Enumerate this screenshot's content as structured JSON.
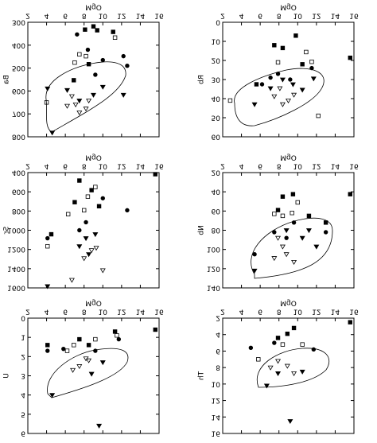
{
  "chart_data": [
    {
      "type": "scatter",
      "x_label": "MgO",
      "y_label": "Ba",
      "xlim": [
        2,
        16
      ],
      "xticks": [
        2,
        4,
        6,
        8,
        10,
        12,
        14,
        16
      ],
      "ylim": [
        300,
        800
      ],
      "yticks": [
        300,
        400,
        500,
        600,
        700,
        800
      ],
      "series": [
        {
          "marker": "circle",
          "color": "#000",
          "x": [
            7.25,
            9.2,
            10.0,
            12.2,
            12.6,
            8.4
          ],
          "y": [
            353,
            529,
            465,
            448,
            490,
            420
          ]
        },
        {
          "marker": "square",
          "color": "#000",
          "x": [
            8.1,
            9.4,
            9.0,
            11.1,
            6.9,
            8.5
          ],
          "y": [
            332,
            335,
            318,
            342,
            553,
            483
          ]
        },
        {
          "marker": "square",
          "color": "none",
          "x": [
            7.5,
            8.2,
            4.0,
            11.3,
            7.0
          ],
          "y": [
            440,
            448,
            650,
            367,
            476
          ]
        },
        {
          "marker": "triangle",
          "color": "#000",
          "x": [
            4.6,
            4.1,
            9.0,
            10.0,
            6.2,
            7.5,
            12.2
          ],
          "y": [
            782,
            589,
            617,
            582,
            596,
            642,
            617
          ]
        },
        {
          "marker": "triangle",
          "color": "none",
          "x": [
            6.7,
            7.1,
            7.5,
            8.2,
            6.2,
            8.5
          ],
          "y": [
            623,
            659,
            694,
            677,
            665,
            642
          ]
        }
      ]
    },
    {
      "type": "scatter",
      "x_label": "MgO",
      "y_label": "Rb",
      "xlim": [
        2,
        16
      ],
      "xticks": [
        2,
        4,
        6,
        8,
        10,
        12,
        14,
        16
      ],
      "ylim": [
        0,
        60
      ],
      "yticks": [
        0,
        10,
        20,
        30,
        40,
        50,
        60
      ],
      "series": [
        {
          "marker": "circle",
          "color": "#000",
          "x": [
            6.2,
            7.1,
            11.5,
            9.2,
            7.9
          ],
          "y": [
            32.5,
            29,
            24,
            30,
            27
          ]
        },
        {
          "marker": "square",
          "color": "#000",
          "x": [
            7.5,
            9.8,
            8.4,
            10.5,
            5.6,
            15.6
          ],
          "y": [
            12,
            7,
            13.5,
            22,
            32.5,
            18.6
          ]
        },
        {
          "marker": "square",
          "color": "none",
          "x": [
            11.5,
            7.9,
            12.2,
            2.8,
            10.9
          ],
          "y": [
            20.7,
            21,
            49,
            41,
            15.6
          ]
        },
        {
          "marker": "triangle",
          "color": "#000",
          "x": [
            5.4,
            8.4,
            9.5,
            10.5,
            11.7,
            7.1
          ],
          "y": [
            43,
            30,
            32.5,
            35.4,
            29.5,
            34.6
          ]
        },
        {
          "marker": "triangle",
          "color": "none",
          "x": [
            7.5,
            8.4,
            9.0,
            9.6,
            8.1
          ],
          "y": [
            38.8,
            43,
            41,
            38,
            34.6
          ]
        }
      ]
    },
    {
      "type": "scatter",
      "x_label": "MgO",
      "y_label": "Sr",
      "xlim": [
        2,
        16
      ],
      "xticks": [
        2,
        4,
        6,
        8,
        10,
        12,
        14,
        16
      ],
      "ylim": [
        400,
        1600
      ],
      "yticks": [
        400,
        600,
        800,
        1000,
        1200,
        1400,
        1600
      ],
      "series": [
        {
          "marker": "circle",
          "color": "#000",
          "x": [
            4.1,
            8.2,
            10.0,
            12.6,
            7.5
          ],
          "y": [
            1083,
            917,
            667,
            792,
            1000
          ]
        },
        {
          "marker": "square",
          "color": "#000",
          "x": [
            4.5,
            8.8,
            9.6,
            7.0,
            7.5,
            15.6
          ],
          "y": [
            1042,
            583,
            750,
            708,
            483,
            417
          ]
        },
        {
          "marker": "square",
          "color": "none",
          "x": [
            9.2,
            8.0,
            6.3,
            4.1,
            8.4
          ],
          "y": [
            550,
            792,
            833,
            1167,
            650
          ]
        },
        {
          "marker": "triangle",
          "color": "#000",
          "x": [
            8.2,
            8.5,
            9.2,
            4.1,
            7.5
          ],
          "y": [
            1083,
            1250,
            1042,
            1583,
            1167
          ]
        },
        {
          "marker": "triangle",
          "color": "none",
          "x": [
            8.0,
            8.8,
            6.7,
            10.0,
            9.3
          ],
          "y": [
            1292,
            1208,
            1517,
            1417,
            1183
          ]
        }
      ]
    },
    {
      "type": "scatter",
      "x_label": "MgO",
      "y_label": "Nb",
      "xlim": [
        2,
        16
      ],
      "xticks": [
        2,
        4,
        6,
        8,
        10,
        12,
        14,
        16
      ],
      "ylim": [
        20,
        140
      ],
      "yticks": [
        20,
        40,
        60,
        80,
        100,
        120,
        140
      ],
      "series": [
        {
          "marker": "circle",
          "color": "#000",
          "x": [
            5.4,
            7.5,
            13.0,
            9.6,
            8.8
          ],
          "y": [
            105,
            82,
            82,
            72,
            88
          ]
        },
        {
          "marker": "square",
          "color": "#000",
          "x": [
            8.4,
            9.5,
            7.9,
            13.0,
            15.6,
            11.2
          ],
          "y": [
            45,
            42.5,
            59,
            72,
            42.5,
            65
          ]
        },
        {
          "marker": "square",
          "color": "none",
          "x": [
            8.4,
            10.0,
            9.4,
            7.5
          ],
          "y": [
            65,
            51,
            62,
            63
          ]
        },
        {
          "marker": "triangle",
          "color": "#000",
          "x": [
            5.4,
            8.8,
            11.2,
            12.0,
            10.5
          ],
          "y": [
            122,
            80,
            80,
            97,
            88
          ]
        },
        {
          "marker": "triangle",
          "color": "none",
          "x": [
            7.5,
            8.8,
            9.6,
            8.4,
            7.9
          ],
          "y": [
            109,
            105,
            113,
            97,
            88
          ]
        }
      ]
    },
    {
      "type": "scatter",
      "x_label": "MgO",
      "y_label": "U",
      "xlim": [
        2,
        16
      ],
      "xticks": [
        2,
        4,
        6,
        8,
        10,
        12,
        14,
        16
      ],
      "ylim": [
        0,
        6
      ],
      "yticks": [
        0,
        1,
        2,
        3,
        4,
        5,
        6
      ],
      "series": [
        {
          "marker": "circle",
          "color": "#000",
          "x": [
            4.1,
            5.8,
            9.2,
            11.7
          ],
          "y": [
            1.7,
            1.6,
            1.7,
            1.1
          ]
        },
        {
          "marker": "square",
          "color": "#000",
          "x": [
            4.1,
            7.5,
            8.5,
            15.6,
            11.3
          ],
          "y": [
            1.4,
            1.1,
            1.4,
            0.6,
            0.7
          ]
        },
        {
          "marker": "square",
          "color": "none",
          "x": [
            6.9,
            9.2,
            11.5,
            6.2
          ],
          "y": [
            1.4,
            1.1,
            0.9,
            1.7
          ]
        },
        {
          "marker": "triangle",
          "color": "#000",
          "x": [
            4.6,
            9.6,
            10.0,
            8.8
          ],
          "y": [
            4,
            5.6,
            2.3,
            2.9
          ]
        },
        {
          "marker": "triangle",
          "color": "none",
          "x": [
            7.5,
            8.2,
            6.8,
            8.5
          ],
          "y": [
            2.5,
            2.1,
            2.7,
            2.2
          ]
        }
      ]
    },
    {
      "type": "scatter",
      "x_label": "MgO",
      "y_label": "Th",
      "xlim": [
        2,
        16
      ],
      "xticks": [
        2,
        4,
        6,
        8,
        10,
        12,
        14,
        16
      ],
      "ylim": [
        2,
        16
      ],
      "yticks": [
        2,
        4,
        6,
        8,
        10,
        12,
        14,
        16
      ],
      "series": [
        {
          "marker": "circle",
          "color": "#000",
          "x": [
            5.0,
            7.5,
            11.7
          ],
          "y": [
            5.6,
            5.0,
            5.8
          ]
        },
        {
          "marker": "square",
          "color": "#000",
          "x": [
            7.9,
            8.9,
            15.6,
            9.6
          ],
          "y": [
            4.4,
            3.9,
            2.5,
            3.2
          ]
        },
        {
          "marker": "square",
          "color": "none",
          "x": [
            8.4,
            10.5,
            5.8
          ],
          "y": [
            5.2,
            5.2,
            7.0
          ]
        },
        {
          "marker": "triangle",
          "color": "#000",
          "x": [
            6.7,
            9.2,
            10.5,
            7.9
          ],
          "y": [
            10.2,
            14.5,
            8.5,
            8.7
          ]
        },
        {
          "marker": "triangle",
          "color": "none",
          "x": [
            7.9,
            8.9,
            9.6,
            7.1
          ],
          "y": [
            7.2,
            7.8,
            8.7,
            8.0
          ]
        }
      ]
    }
  ]
}
